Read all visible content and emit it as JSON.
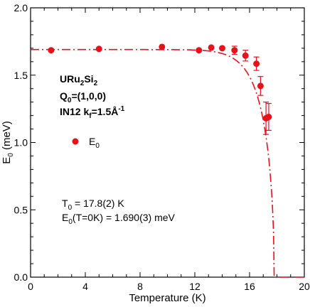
{
  "chart_data": {
    "type": "scatter",
    "xlabel": "Temperature (K)",
    "ylabel_main": "E",
    "ylabel_sub": "0",
    "ylabel_unit": " (meV)",
    "xlim": [
      0,
      20
    ],
    "ylim": [
      0,
      2.0
    ],
    "x_ticks": [
      0,
      4,
      8,
      12,
      16,
      20
    ],
    "x_tick_labels": [
      "0",
      "4",
      "8",
      "12",
      "16",
      "20"
    ],
    "y_ticks": [
      0,
      0.5,
      1.0,
      1.5,
      2.0
    ],
    "y_tick_labels": [
      "0.0",
      "0.5",
      "1.0",
      "1.5",
      "2.0"
    ],
    "grid": false,
    "color": "#e8101a",
    "series": [
      {
        "name_main": "E",
        "name_sub": "0",
        "points": [
          {
            "x": 1.5,
            "y": 1.685,
            "err": 0
          },
          {
            "x": 5.0,
            "y": 1.695,
            "err": 0
          },
          {
            "x": 9.6,
            "y": 1.71,
            "err": 0
          },
          {
            "x": 12.3,
            "y": 1.685,
            "err": 0
          },
          {
            "x": 13.2,
            "y": 1.705,
            "err": 0
          },
          {
            "x": 14.0,
            "y": 1.7,
            "err": 0
          },
          {
            "x": 14.9,
            "y": 1.685,
            "err": 0.03
          },
          {
            "x": 15.7,
            "y": 1.645,
            "err": 0.04
          },
          {
            "x": 16.5,
            "y": 1.585,
            "err": 0.05
          },
          {
            "x": 16.8,
            "y": 1.42,
            "err": 0.07
          },
          {
            "x": 17.2,
            "y": 1.18,
            "err": 0.12
          },
          {
            "x": 17.4,
            "y": 1.19,
            "err": 0.1
          }
        ]
      }
    ],
    "fit": {
      "style": "dash-dot",
      "T0": 17.8,
      "E0": 1.69
    },
    "annotations": {
      "compound": {
        "p1": "URu",
        "s1": "2",
        "p2": "Si",
        "s2": "2"
      },
      "q_vector": {
        "main": "Q",
        "sub": "0",
        "rest": "=(1,0,0)"
      },
      "instrument": {
        "main": "IN12 k",
        "sub": "f",
        "rest": "=1.5Å",
        "sup": "-1"
      },
      "t0_line": {
        "main": "T",
        "sub": "0",
        "rest": " = 17.8(2) K"
      },
      "e0_line": {
        "main": "E",
        "sub": "0",
        "rest": "(T=0K) = 1.690(3) meV"
      }
    }
  }
}
